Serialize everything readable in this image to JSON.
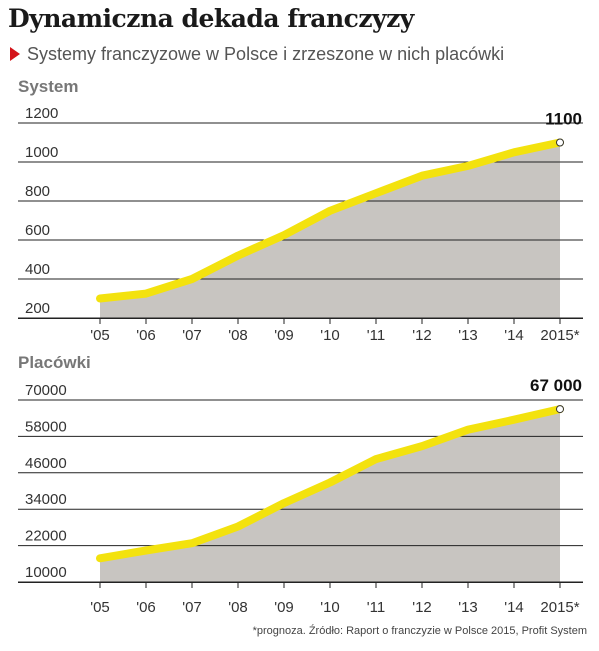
{
  "title": "Dynamiczna dekada franczyzy",
  "subtitle": "Systemy franczyzowe w Polsce i zrzeszone w nich placówki",
  "source": "*prognoza. Źródło: Raport o franczyzie w Polsce 2015, Profit System",
  "colors": {
    "line": "#f3e20e",
    "area": "#c8c5c1",
    "grid": "#222222",
    "marker_fill": "#ffffff",
    "accent": "#d4141a"
  },
  "chart_data": [
    {
      "type": "area",
      "panel_label": "System",
      "categories": [
        "'05",
        "'06",
        "'07",
        "'08",
        "'09",
        "'10",
        "'11",
        "'12",
        "'13",
        "'14",
        "2015*"
      ],
      "values": [
        300,
        325,
        400,
        520,
        625,
        750,
        840,
        930,
        980,
        1050,
        1100
      ],
      "yticks": [
        200,
        400,
        600,
        800,
        1000,
        1200
      ],
      "ylim": [
        200,
        1200
      ],
      "end_label": "1100",
      "grid": true
    },
    {
      "type": "area",
      "panel_label": "Placówki",
      "categories": [
        "'05",
        "'06",
        "'07",
        "'08",
        "'09",
        "'10",
        "'11",
        "'12",
        "'13",
        "'14",
        "2015*"
      ],
      "values": [
        17800,
        20400,
        22800,
        28300,
        36000,
        42800,
        50500,
        54800,
        60200,
        63500,
        67000
      ],
      "yticks": [
        10000,
        22000,
        34000,
        46000,
        58000,
        70000
      ],
      "ylim": [
        10000,
        70000
      ],
      "end_label": "67 000",
      "grid": true
    }
  ]
}
